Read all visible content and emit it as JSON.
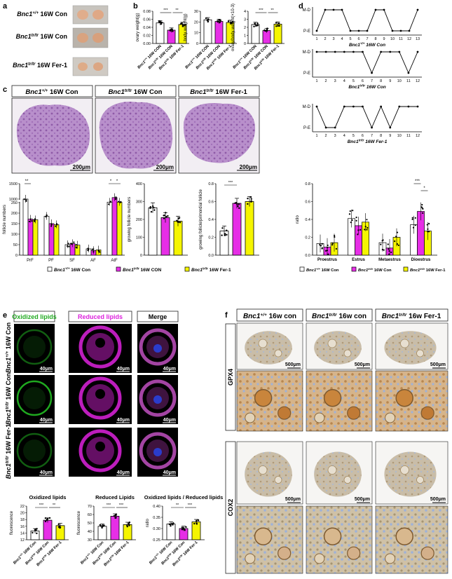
{
  "panel_letters": [
    "a",
    "b",
    "c",
    "d",
    "e",
    "f"
  ],
  "groups": {
    "wt_con": "Bnc1+/+ 16W Con",
    "tr_con": "Bnc1tr/tr 16W Con",
    "tr_fer": "Bnc1tr/tr 16W Fer-1"
  },
  "group_parts": {
    "wt": {
      "gene": "Bnc1",
      "sup": "+/+"
    },
    "tr": {
      "gene": "Bnc1",
      "sup": "tr/tr"
    },
    "con_upper": "16W Con",
    "fer_upper": "16W Fer-1",
    "con_lower": "16w con",
    "fer_lower": "16w Fer-1",
    "con_axis": "16W CON",
    "fer_axis": "16W Fer-1"
  },
  "colors": {
    "wt": "#ffffff",
    "tr_con": "#e62ee6",
    "tr_fer": "#f5f500",
    "oxidized": "#22bb22",
    "reduced": "#dd22dd",
    "he_tissue": "#b98fc9",
    "ihc_tissue": "#cdbfa6"
  },
  "panel_a": {
    "labels": [
      "Bnc1+/+ 16W Con",
      "Bnc1tr/tr 16W Con",
      "Bnc1tr/tr 16W Fer-1"
    ]
  },
  "panel_b": {
    "charts": [
      {
        "ylabel": "ovary weight(g)",
        "yticks": [
          "0.00",
          "0.02",
          "0.04",
          "0.06",
          "0.08"
        ],
        "ylim": [
          0,
          0.08
        ],
        "values": [
          0.051,
          0.033,
          0.047
        ],
        "sig": [
          "***",
          "**"
        ]
      },
      {
        "ylabel": "body weight(g)",
        "yticks": [
          "0",
          "10",
          "20",
          "30"
        ],
        "ylim": [
          0,
          30
        ],
        "values": [
          22,
          20.5,
          19.5
        ],
        "sig": []
      },
      {
        "ylabel": "ovary/body weight(×10-3)",
        "yticks": [
          "0",
          "1",
          "2",
          "3",
          "4"
        ],
        "ylim": [
          0,
          4
        ],
        "values": [
          2.35,
          1.6,
          2.4
        ],
        "sig": [
          "***",
          "**"
        ]
      }
    ]
  },
  "panel_c": {
    "headers": [
      "Bnc1+/+ 16W Con",
      "Bnc1tr/tr 16W Con",
      "Bnc1tr/tr 16W Fer-1"
    ],
    "scale": "200μm"
  },
  "panel_d": {
    "ytick_top": "M-D",
    "ytick_bottom": "P-E",
    "charts": [
      {
        "label": "Bnc1+/+ 16W Con",
        "x": [
          1,
          2,
          3,
          4,
          5,
          6,
          7,
          8,
          9,
          10,
          11,
          12,
          13
        ],
        "y": [
          0,
          1,
          1,
          1,
          0,
          0,
          0,
          1,
          1,
          0,
          0,
          0,
          1
        ]
      },
      {
        "label": "Bnc1tr/tr 16W Con",
        "x": [
          1,
          2,
          3,
          4,
          5,
          6,
          7,
          8,
          9,
          10,
          11,
          12
        ],
        "y": [
          1,
          1,
          1,
          1,
          1,
          1,
          0,
          1,
          1,
          1,
          0,
          1
        ]
      },
      {
        "label": "Bnc1tr/tr 16W Fer-1",
        "x": [
          1,
          2,
          3,
          4,
          5,
          6,
          7,
          8,
          9,
          10,
          11,
          12
        ],
        "y": [
          1,
          0,
          0,
          1,
          1,
          1,
          0,
          1,
          0,
          1,
          1,
          1
        ]
      }
    ]
  },
  "chart_data": [
    {
      "type": "bar",
      "title": "",
      "ylabel": "follicle numbers",
      "categories": [
        "PrF",
        "PF",
        "SF",
        "AF",
        "AtF"
      ],
      "yticks": [
        "0",
        "50",
        "100",
        "150",
        "200",
        "250",
        "1000",
        "1500"
      ],
      "series": [
        {
          "name": "Bnc1+/+ 16W Con",
          "values": [
            1000,
            185,
            50,
            30,
            900
          ]
        },
        {
          "name": "Bnc1tr/tr 16W CON",
          "values": [
            350,
            150,
            55,
            22,
            1050
          ]
        },
        {
          "name": "Bnc1tr/tr 16W Fer-1",
          "values": [
            330,
            145,
            48,
            25,
            900
          ]
        }
      ],
      "sig": [
        {
          "cat": "PrF",
          "text": "**"
        },
        {
          "cat": "AtF",
          "text": "*"
        },
        {
          "cat": "AtF",
          "text": "*"
        }
      ]
    },
    {
      "type": "bar",
      "title": "",
      "ylabel": "growing follicle numbers",
      "yticks": [
        "0",
        "100",
        "200",
        "300",
        "400"
      ],
      "ylim": [
        0,
        400
      ],
      "series": [
        {
          "name": "Bnc1+/+ 16W Con",
          "values": [
            265
          ]
        },
        {
          "name": "Bnc1tr/tr 16W CON",
          "values": [
            210
          ]
        },
        {
          "name": "Bnc1tr/tr 16W Fer-1",
          "values": [
            190
          ]
        }
      ]
    },
    {
      "type": "bar",
      "title": "",
      "ylabel": "growing follicle/primordial follicle",
      "yticks": [
        "0.0",
        "0.2",
        "0.4",
        "0.6",
        "0.8"
      ],
      "ylim": [
        0,
        0.8
      ],
      "series": [
        {
          "name": "Bnc1+/+ 16W Con",
          "values": [
            0.27
          ]
        },
        {
          "name": "Bnc1tr/tr 16W CON",
          "values": [
            0.58
          ]
        },
        {
          "name": "Bnc1tr/tr 16W Fer-1",
          "values": [
            0.6
          ]
        }
      ],
      "sig": [
        {
          "text": "***"
        }
      ]
    },
    {
      "type": "bar",
      "title": "",
      "ylabel": "ratio",
      "categories": [
        "Proestrus",
        "Estrus",
        "Metaestrus",
        "Dioestrus"
      ],
      "yticks": [
        "0.0",
        "0.2",
        "0.4",
        "0.6",
        "0.8"
      ],
      "ylim": [
        0,
        0.8
      ],
      "series": [
        {
          "name": "Bnc1+/+ 16W Con",
          "values": [
            0.13,
            0.41,
            0.14,
            0.34
          ]
        },
        {
          "name": "Bnc1tr/tr 16W Con",
          "values": [
            0.09,
            0.33,
            0.08,
            0.49
          ]
        },
        {
          "name": "Bnc1tr/tr 16W Fer-1",
          "values": [
            0.14,
            0.37,
            0.2,
            0.27
          ]
        }
      ],
      "sig": [
        {
          "cat": "Dioestrus",
          "text": "***"
        },
        {
          "cat": "Dioestrus",
          "text": "*"
        }
      ]
    },
    {
      "type": "bar",
      "title": "Oxidized lipids",
      "ylabel": "fluorescence",
      "yticks": [
        "12",
        "14",
        "16",
        "18",
        "20",
        "22"
      ],
      "ylim": [
        12,
        22
      ],
      "categories": [
        "Bnc1+/+ 16W Con",
        "Bnc1tr/tr 16W Con",
        "Bnc1tr/tr 16W Fer-1"
      ],
      "values": [
        14.6,
        17.8,
        16.2
      ],
      "sig": [
        "***",
        "**"
      ]
    },
    {
      "type": "bar",
      "title": "Reduced Lipids",
      "ylabel": "fluorescence",
      "yticks": [
        "30",
        "40",
        "50",
        "60",
        "70"
      ],
      "ylim": [
        30,
        70
      ],
      "categories": [
        "Bnc1+/+ 16W Con",
        "Bnc1tr/tr 16W Con",
        "Bnc1tr/tr 16W Fer-1"
      ],
      "values": [
        46,
        58,
        48
      ],
      "sig": [
        "***",
        "***"
      ]
    },
    {
      "type": "bar",
      "title": "Oxidized lipids / Reduced lipids",
      "ylabel": "ratio",
      "yticks": [
        "0.25",
        "0.30",
        "0.35",
        "0.40"
      ],
      "ylim": [
        0.25,
        0.4
      ],
      "categories": [
        "Bnc1+/+ 16W Con",
        "Bnc1tr/tr 16W Con",
        "Bnc1tr/tr 16W Fer-1"
      ],
      "values": [
        0.32,
        0.3,
        0.33
      ],
      "sig": [
        "**",
        "***"
      ]
    }
  ],
  "panel_e": {
    "headers": [
      "Oxidized lipids",
      "Reduced lipids",
      "Merge"
    ],
    "rows": [
      "Bnc1+/+ 16W Con",
      "Bnc1tr/tr 16W Con",
      "Bnc1tr/tr 16W Fer-1"
    ],
    "scale": "40μm"
  },
  "panel_f": {
    "headers": [
      "Bnc1+/+ 16w con",
      "Bnc1tr/tr 16w con",
      "Bnc1tr/tr 16w Fer-1"
    ],
    "rows": [
      "GPX4",
      "COX2"
    ],
    "scale": "500μm"
  }
}
